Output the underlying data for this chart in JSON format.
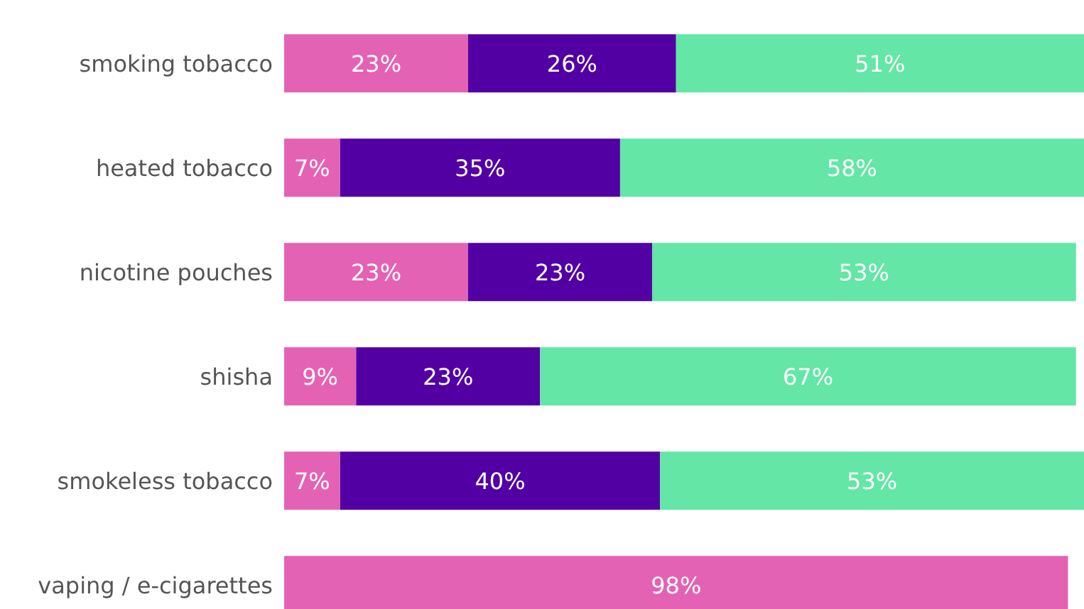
{
  "chart_data": {
    "type": "bar",
    "orientation": "horizontal",
    "stacked": true,
    "tick_labels": "y",
    "xlim": [
      0,
      100
    ],
    "categories": [
      "smoking tobacco",
      "heated tobacco",
      "nicotine pouches",
      "shisha",
      "smokeless tobacco",
      "vaping / e-cigarettes"
    ],
    "series": [
      {
        "color": "#e462b4",
        "values": [
          23,
          7,
          23,
          9,
          7,
          98
        ],
        "value_labels": [
          "23%",
          "7%",
          "23%",
          "9%",
          "7%",
          "98%"
        ]
      },
      {
        "color": "#5200a3",
        "values": [
          26,
          35,
          23,
          23,
          40,
          null
        ],
        "value_labels": [
          "26%",
          "35%",
          "23%",
          "23%",
          "40%",
          null
        ]
      },
      {
        "color": "#63e6a6",
        "values": [
          51,
          58,
          53,
          67,
          53,
          null
        ],
        "value_labels": [
          "51%",
          "58%",
          "53%",
          "67%",
          "53%",
          null
        ]
      }
    ]
  }
}
